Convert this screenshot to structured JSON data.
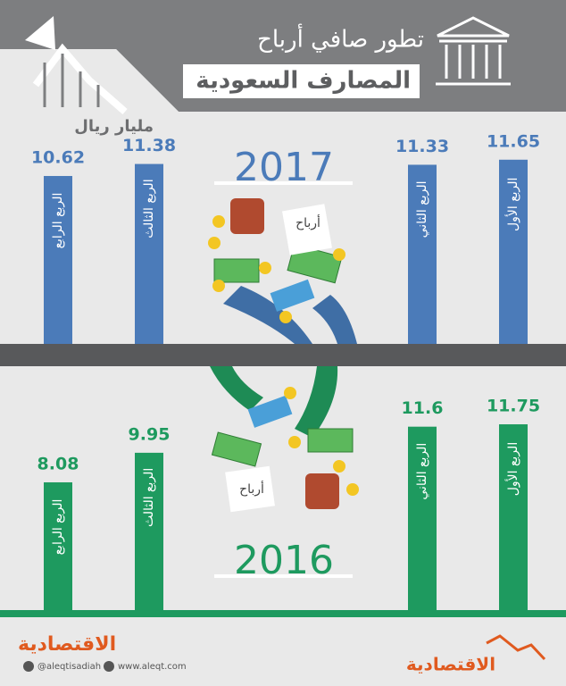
{
  "header": {
    "title": "تطور صافي أرباح",
    "subtitle": "المصارف السعودية",
    "unit": "مليار ريال"
  },
  "chart_data": [
    {
      "type": "bar",
      "title": "2017",
      "color": "#4b7bb9",
      "categories": [
        "الربع الرابع",
        "الربع الثالث",
        "الربع الثاني",
        "الربع الأول"
      ],
      "values": [
        10.62,
        11.38,
        11.33,
        11.65
      ]
    },
    {
      "type": "bar",
      "title": "2016",
      "color": "#1e9a5f",
      "categories": [
        "الربع الرابع",
        "الربع الثالث",
        "الربع الثاني",
        "الربع الأول"
      ],
      "values": [
        8.08,
        9.95,
        11.6,
        11.75
      ]
    }
  ],
  "illustration": {
    "labels": [
      "أرباح",
      "أرباح"
    ]
  },
  "footer": {
    "logo": "الاقتصادية",
    "twitter": "@aleqtisadiah",
    "website": "www.aleqt.com"
  }
}
